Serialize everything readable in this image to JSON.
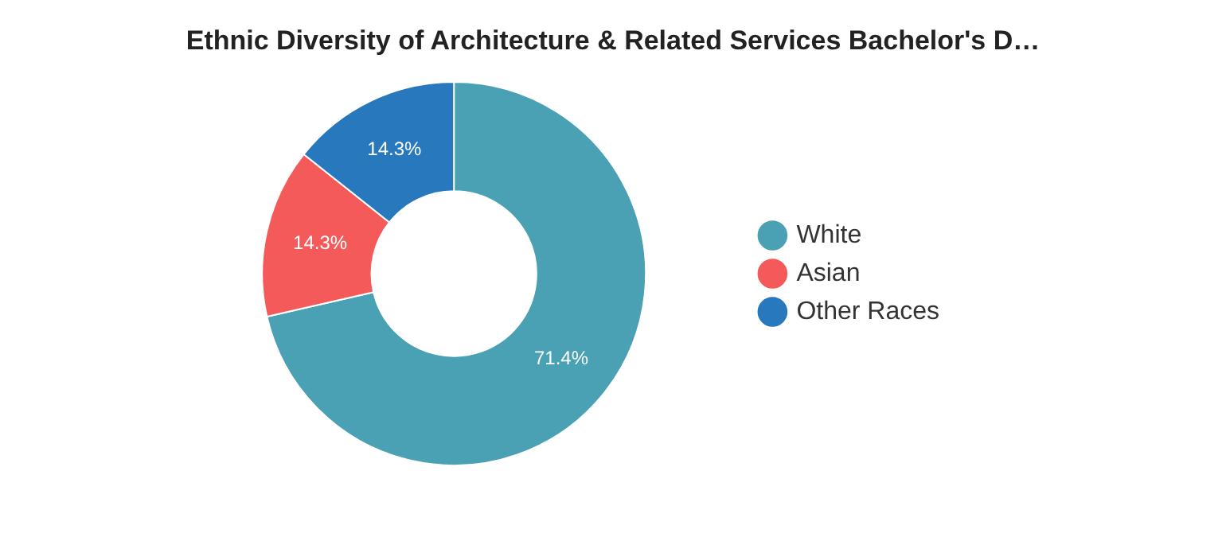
{
  "chart_data": {
    "type": "donut",
    "title": "Ethnic Diversity of Architecture & Related Services Bachelor's D…",
    "categories": [
      "White",
      "Asian",
      "Other Races"
    ],
    "values": [
      71.4,
      14.3,
      14.3
    ],
    "value_labels": [
      "71.4%",
      "14.3%",
      "14.3%"
    ],
    "colors": [
      "#49a1b3",
      "#f55a5a",
      "#2878bd"
    ],
    "legend": "right"
  }
}
